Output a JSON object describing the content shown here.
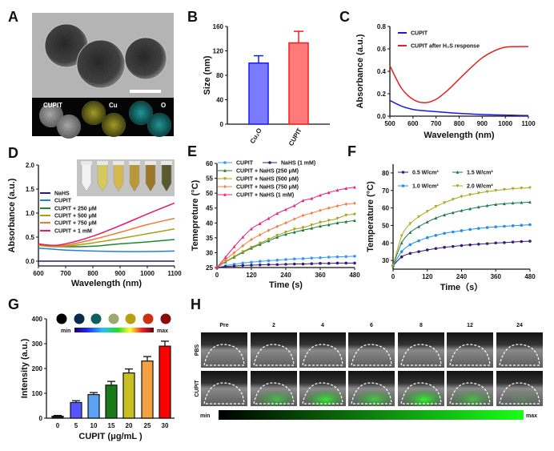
{
  "panel_labels": [
    "A",
    "B",
    "C",
    "D",
    "E",
    "F",
    "G",
    "H"
  ],
  "panel_a": {
    "eds_labels": [
      "CUPIT",
      "Cu",
      "O"
    ]
  },
  "chart_data": [
    {
      "type": "bar",
      "categories": [
        "Cu₂O",
        "CUPIT"
      ],
      "values": [
        100,
        133
      ],
      "errors": [
        12,
        19
      ],
      "ylabel": "Size (nm)",
      "ylim": [
        0,
        160
      ],
      "yticks": [
        "0",
        "40",
        "80",
        "120",
        "160"
      ],
      "fill_colors": [
        "#7b7bff",
        "#ff7b7b"
      ],
      "edge_colors": [
        "#1a1aff",
        "#ff1a1a"
      ]
    },
    {
      "type": "line",
      "xlabel": "Wavelength (nm)",
      "ylabel": "Absorbance (a.u.)",
      "xlim": [
        500,
        1100
      ],
      "ylim": [
        0,
        0.8
      ],
      "xticks": [
        "500",
        "600",
        "700",
        "800",
        "900",
        "1000",
        "1100"
      ],
      "yticks": [
        "0.0",
        "0.2",
        "0.4",
        "0.6",
        "0.8"
      ],
      "legend": "top-left",
      "x": [
        500,
        550,
        600,
        650,
        700,
        750,
        800,
        850,
        900,
        950,
        1000,
        1050,
        1100
      ],
      "series": [
        {
          "name": "CUPIT",
          "color": "#1a1ae0",
          "y": [
            0.14,
            0.09,
            0.06,
            0.048,
            0.04,
            0.032,
            0.025,
            0.02,
            0.015,
            0.012,
            0.01,
            0.007,
            0.005
          ]
        },
        {
          "name": "CUPIT after H₂S response",
          "color": "#e82020",
          "y": [
            0.45,
            0.25,
            0.15,
            0.12,
            0.15,
            0.23,
            0.33,
            0.43,
            0.52,
            0.58,
            0.615,
            0.62,
            0.62
          ]
        }
      ]
    },
    {
      "type": "line",
      "xlabel": "Wavelength (nm)",
      "ylabel": "Absorbance (a.u.)",
      "xlim": [
        600,
        1100
      ],
      "ylim": [
        -0.1,
        2.0
      ],
      "xticks": [
        "600",
        "700",
        "800",
        "900",
        "1000",
        "1100"
      ],
      "yticks": [
        "0.0",
        "0.5",
        "1.0",
        "1.5",
        "2.0"
      ],
      "legend": "middle-left",
      "inset_tube_colors": [
        "#f2f2f2",
        "#d8c860",
        "#d4b850",
        "#b89838",
        "#9a7828",
        "#5a5a30"
      ],
      "x": [
        600,
        650,
        700,
        800,
        900,
        1000,
        1100
      ],
      "series": [
        {
          "name": "NaHS",
          "color": "#2a1a80",
          "y": [
            0,
            0,
            0,
            0,
            0,
            0,
            0
          ]
        },
        {
          "name": "CUPIT",
          "color": "#2080e0",
          "y": [
            0.27,
            0.25,
            0.23,
            0.21,
            0.2,
            0.2,
            0.21
          ]
        },
        {
          "name": "CUPIT + 250 μM",
          "color": "#1a8a2a",
          "y": [
            0.35,
            0.31,
            0.3,
            0.31,
            0.36,
            0.4,
            0.45
          ]
        },
        {
          "name": "CUPIT + 500 μM",
          "color": "#a8a010",
          "y": [
            0.33,
            0.3,
            0.31,
            0.38,
            0.47,
            0.57,
            0.67
          ]
        },
        {
          "name": "CUPIT + 750 μM",
          "color": "#f07830",
          "y": [
            0.35,
            0.32,
            0.33,
            0.45,
            0.6,
            0.76,
            0.89
          ]
        },
        {
          "name": "CUPIT + 1 mM",
          "color": "#e8186a",
          "y": [
            0.36,
            0.33,
            0.36,
            0.52,
            0.74,
            0.98,
            1.21
          ]
        }
      ]
    },
    {
      "type": "line",
      "xlabel": "Time (s)",
      "ylabel": "Temepreture (°C)",
      "xlim": [
        0,
        480
      ],
      "ylim": [
        25,
        60
      ],
      "xticks": [
        "0",
        "120",
        "240",
        "360",
        "480"
      ],
      "yticks": [
        "25",
        "30",
        "35",
        "40",
        "45",
        "50",
        "55",
        "60"
      ],
      "legend": "top-left",
      "x": [
        0,
        30,
        60,
        90,
        120,
        150,
        180,
        210,
        240,
        270,
        300,
        330,
        360,
        390,
        420,
        450,
        480
      ],
      "series": [
        {
          "name": "CUPIT",
          "color": "#3399ff",
          "marker": "circle",
          "y": [
            25,
            25.6,
            26.1,
            26.5,
            26.8,
            27.1,
            27.3,
            27.5,
            27.7,
            27.9,
            28.0,
            28.2,
            28.3,
            28.5,
            28.6,
            28.7,
            28.8
          ]
        },
        {
          "name": "NaHS (1 mM)",
          "color": "#3a1a7a",
          "marker": "circle",
          "y": [
            25,
            25.3,
            25.5,
            25.7,
            25.8,
            25.9,
            26.0,
            26.0,
            26.1,
            26.2,
            26.2,
            26.3,
            26.4,
            26.4,
            26.5,
            26.5,
            26.5
          ]
        },
        {
          "name": "CUPIT + NaHS (250 μM)",
          "color": "#1a7a3a",
          "marker": "triangle-up",
          "y": [
            25,
            26.9,
            28.5,
            30.1,
            31.5,
            32.8,
            34.0,
            35.2,
            36.2,
            36.9,
            37.6,
            38.2,
            38.9,
            39.4,
            40.0,
            40.4,
            40.8
          ]
        },
        {
          "name": "CUPIT + NaHS (500 μM)",
          "color": "#a8a010",
          "marker": "triangle-down",
          "y": [
            25,
            27.0,
            28.7,
            30.3,
            31.8,
            33.2,
            34.5,
            35.8,
            36.9,
            37.9,
            38.4,
            39.3,
            40.2,
            40.8,
            41.5,
            42.6,
            42.9
          ]
        },
        {
          "name": "CUPIT + NaHS (750 μM)",
          "color": "#f08040",
          "marker": "diamond",
          "y": [
            25,
            27.6,
            30.0,
            32.3,
            34.4,
            36.0,
            37.5,
            38.8,
            40.0,
            41.3,
            42.5,
            43.3,
            44.2,
            45.0,
            45.7,
            46.3,
            46.6
          ]
        },
        {
          "name": "CUPIT + NaHS (1 mM)",
          "color": "#e8207a",
          "marker": "triangle-up",
          "y": [
            25,
            28.5,
            32.0,
            35.2,
            38.0,
            39.8,
            41.5,
            43.2,
            44.5,
            45.8,
            47.5,
            48.2,
            49.3,
            50.2,
            51.0,
            51.6,
            52.0
          ]
        }
      ]
    },
    {
      "type": "line",
      "xlabel": "Time（s）",
      "ylabel": "Temperature (°C)",
      "xlim": [
        0,
        480
      ],
      "ylim": [
        25,
        85
      ],
      "xticks": [
        "0",
        "120",
        "240",
        "360",
        "480"
      ],
      "yticks": [
        "30",
        "40",
        "50",
        "60",
        "70",
        "80"
      ],
      "legend": "top",
      "x": [
        0,
        30,
        60,
        90,
        120,
        150,
        180,
        210,
        240,
        270,
        300,
        330,
        360,
        390,
        420,
        450,
        480
      ],
      "series": [
        {
          "name": "0.5 W/cm²",
          "color": "#3a1a7a",
          "marker": "circle",
          "y": [
            27,
            32,
            34,
            35,
            36,
            36.8,
            37.5,
            38,
            38.5,
            38.9,
            39.3,
            39.6,
            40,
            40.2,
            40.5,
            40.8,
            41
          ]
        },
        {
          "name": "1.0 W/cm²",
          "color": "#2090f0",
          "marker": "circle",
          "y": [
            27,
            35,
            39,
            41.2,
            43,
            44.3,
            45.5,
            46.3,
            47,
            47.7,
            48.3,
            48.8,
            49.2,
            49.5,
            49.8,
            50.1,
            50.4
          ]
        },
        {
          "name": "1.5 W/cm²",
          "color": "#1a7a4a",
          "marker": "triangle-up",
          "y": [
            27,
            40,
            46,
            49.3,
            52,
            54.2,
            56,
            57.3,
            58.5,
            59.5,
            60.5,
            61.3,
            62,
            62.4,
            62.8,
            63.1,
            63.3
          ]
        },
        {
          "name": "2.0 W/cm²",
          "color": "#a8a818",
          "marker": "triangle-down",
          "y": [
            27,
            44,
            51,
            55,
            58,
            60.8,
            63,
            64.9,
            66.5,
            67.6,
            68.5,
            69.3,
            70,
            70.5,
            71,
            71.3,
            71.5
          ]
        }
      ]
    },
    {
      "type": "bar",
      "categories": [
        "0",
        "5",
        "10",
        "15",
        "20",
        "25",
        "30"
      ],
      "values": [
        8,
        63,
        95,
        133,
        182,
        230,
        290
      ],
      "errors": [
        3,
        7,
        8,
        15,
        16,
        18,
        20
      ],
      "xlabel": "CUPIT (μg/mL )",
      "ylabel": "Intensity (a.u.)",
      "ylim": [
        0,
        400
      ],
      "yticks": [
        "0",
        "100",
        "200",
        "300",
        "400"
      ],
      "fill_colors": [
        "#111111",
        "#5555ff",
        "#5ba3f5",
        "#1a7a1a",
        "#c8c020",
        "#f5a040",
        "#ff0000"
      ],
      "scale_colors": [
        "#000000",
        "#0b2a4a",
        "#0e5f5f",
        "#9aaa70",
        "#b8a010",
        "#cc3010",
        "#8a0a0a"
      ],
      "colorbar_labels": {
        "min": "min",
        "max": "max"
      }
    }
  ],
  "panel_h": {
    "columns": [
      "Pre",
      "2",
      "4",
      "6",
      "8",
      "12",
      "24"
    ],
    "rows": [
      "PBS",
      "CUPIT"
    ],
    "colorbar_labels": {
      "min": "min",
      "max": "max"
    }
  }
}
